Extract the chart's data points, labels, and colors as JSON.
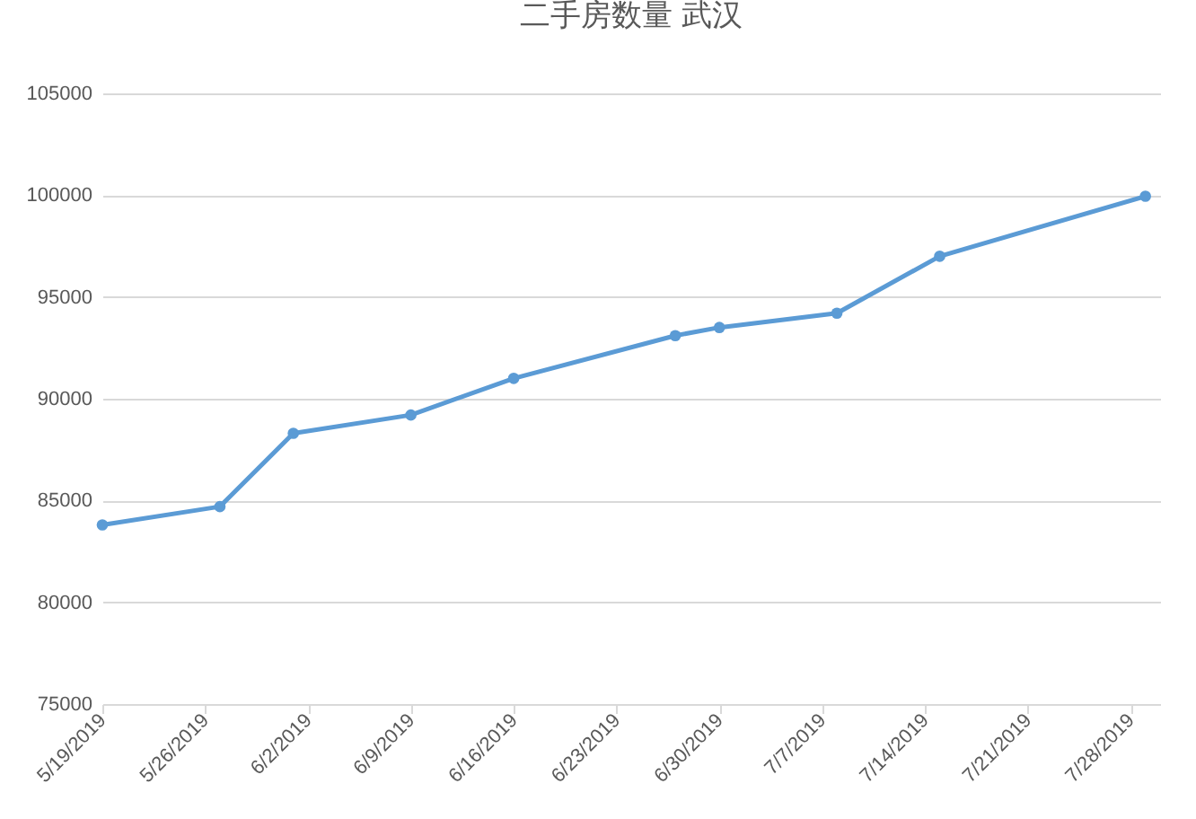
{
  "chart_data": {
    "type": "line",
    "title": "二手房数量 武汉",
    "x": [
      "2019-05-19",
      "2019-05-27",
      "2019-06-01",
      "2019-06-09",
      "2019-06-16",
      "2019-06-27",
      "2019-06-30",
      "2019-07-08",
      "2019-07-15",
      "2019-07-29"
    ],
    "series": [
      {
        "color": "#5b9bd5",
        "values": [
          83800,
          84700,
          88300,
          89200,
          91000,
          93100,
          93500,
          94200,
          97000,
          99950
        ]
      }
    ],
    "xlim": [
      "2019-05-19",
      "2019-07-30"
    ],
    "xticks": [
      {
        "value": "2019-05-19",
        "label": "5/19/2019"
      },
      {
        "value": "2019-05-26",
        "label": "5/26/2019"
      },
      {
        "value": "2019-06-02",
        "label": "6/2/2019"
      },
      {
        "value": "2019-06-09",
        "label": "6/9/2019"
      },
      {
        "value": "2019-06-16",
        "label": "6/16/2019"
      },
      {
        "value": "2019-06-23",
        "label": "6/23/2019"
      },
      {
        "value": "2019-06-30",
        "label": "6/30/2019"
      },
      {
        "value": "2019-07-07",
        "label": "7/7/2019"
      },
      {
        "value": "2019-07-14",
        "label": "7/14/2019"
      },
      {
        "value": "2019-07-21",
        "label": "7/21/2019"
      },
      {
        "value": "2019-07-28",
        "label": "7/28/2019"
      }
    ],
    "ylim": [
      75000,
      105000
    ],
    "yticks": [
      75000,
      80000,
      85000,
      90000,
      95000,
      100000,
      105000
    ],
    "grid": "y",
    "marker": "circle",
    "line_style": "solid",
    "legend": false
  }
}
